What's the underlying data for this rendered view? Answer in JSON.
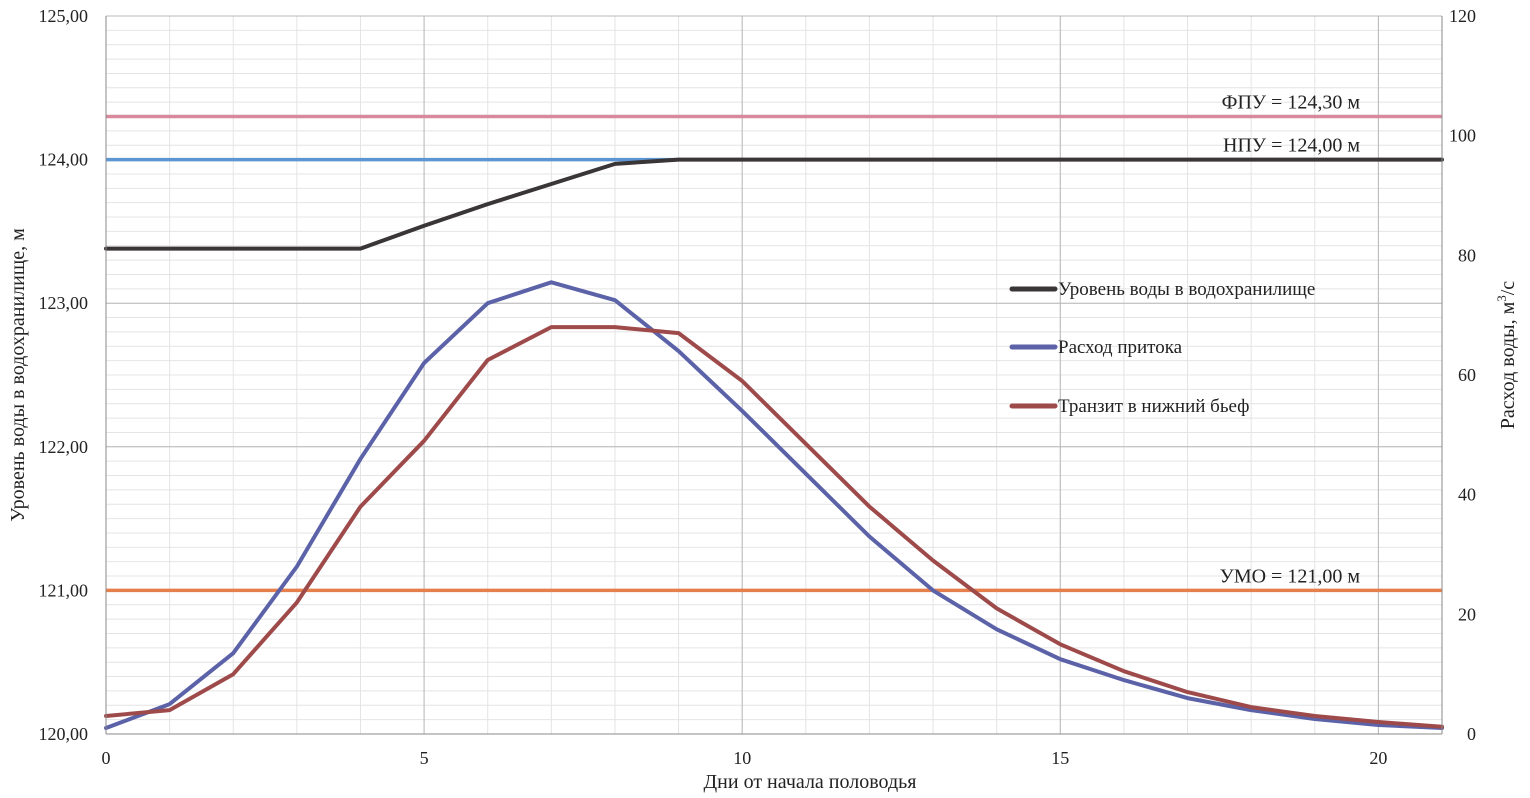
{
  "chart_data": {
    "type": "line",
    "xlabel": "Дни от начала половодья",
    "ylabel_left": "Уровень воды в водохранилище, м",
    "ylabel_right_prefix": "Расход воды, м",
    "ylabel_right_sup": "3",
    "ylabel_right_suffix": "/с",
    "xlim": [
      0,
      21
    ],
    "ylim_left": [
      120,
      125
    ],
    "ylim_right": [
      0,
      120
    ],
    "x_ticks": [
      0,
      5,
      10,
      15,
      20
    ],
    "x_tick_labels": [
      "0",
      "5",
      "10",
      "15",
      "20"
    ],
    "y_left_ticks": [
      120,
      121,
      122,
      123,
      124,
      125
    ],
    "y_left_tick_labels": [
      "120,00",
      "121,00",
      "122,00",
      "123,00",
      "124,00",
      "125,00"
    ],
    "y_right_ticks": [
      0,
      20,
      40,
      60,
      80,
      100,
      120
    ],
    "y_right_tick_labels": [
      "0",
      "20",
      "40",
      "60",
      "80",
      "100",
      "120"
    ],
    "grid": true,
    "legend_position": "right",
    "series": [
      {
        "name": "Уровень воды в водохранилище",
        "axis": "left",
        "color": "#3a3536",
        "x": [
          0,
          1,
          2,
          3,
          4,
          5,
          6,
          7,
          8,
          9,
          10,
          11,
          12,
          13,
          14,
          15,
          16,
          17,
          18,
          19,
          20,
          21
        ],
        "values": [
          123.38,
          123.38,
          123.38,
          123.38,
          123.38,
          123.54,
          123.69,
          123.83,
          123.97,
          124.0,
          124.0,
          124.0,
          124.0,
          124.0,
          124.0,
          124.0,
          124.0,
          124.0,
          124.0,
          124.0,
          124.0,
          124.0
        ]
      },
      {
        "name": "Расход притока",
        "axis": "right",
        "color": "#5b62a8",
        "x": [
          0,
          1,
          2,
          3,
          4,
          5,
          6,
          7,
          8,
          9,
          10,
          11,
          12,
          13,
          14,
          15,
          16,
          17,
          18,
          19,
          20,
          21
        ],
        "values": [
          1,
          5,
          13.5,
          28,
          46,
          62,
          72,
          75.5,
          72.5,
          64,
          54,
          43.5,
          33,
          24,
          17.5,
          12.5,
          9,
          6,
          4,
          2.5,
          1.5,
          1
        ]
      },
      {
        "name": "Транзит в нижний бьеф",
        "axis": "right",
        "color": "#9e4a4a",
        "x": [
          0,
          1,
          2,
          3,
          4,
          5,
          6,
          7,
          8,
          9,
          10,
          11,
          12,
          13,
          14,
          15,
          16,
          17,
          18,
          19,
          20,
          21
        ],
        "values": [
          3,
          4,
          10,
          22,
          38,
          49,
          62.5,
          68,
          68,
          67,
          59,
          48.5,
          38,
          29,
          21,
          15,
          10.5,
          7,
          4.5,
          3,
          2,
          1.2
        ]
      }
    ],
    "reference_lines": [
      {
        "label": "ФПУ = 124,30 м",
        "value": 124.3,
        "axis": "left",
        "color": "#d88a9c"
      },
      {
        "label": "НПУ = 124,00 м",
        "value": 124.0,
        "axis": "left",
        "color": "#5b96d2"
      },
      {
        "label": "УМО = 121,00 м",
        "value": 121.0,
        "axis": "left",
        "color": "#e57f4c"
      }
    ]
  }
}
